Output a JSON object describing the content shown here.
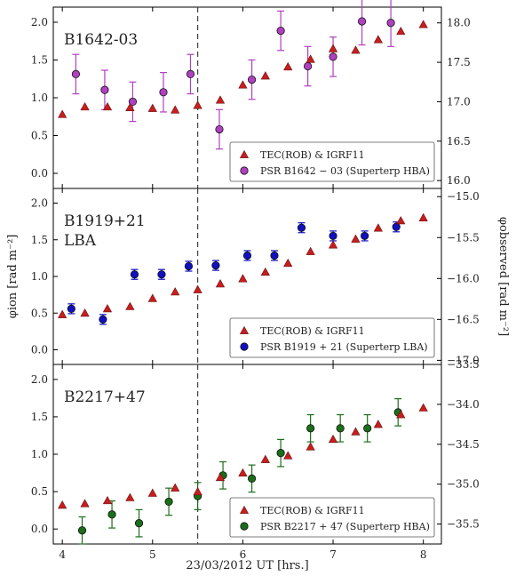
{
  "chart_data": {
    "type": "scatter",
    "xlabel": "23/03/2012 UT [hrs.]",
    "xlim": [
      3.9,
      8.2
    ],
    "x_ticks": [
      "4",
      "5",
      "6",
      "7",
      "8"
    ],
    "vline_x": 5.5,
    "ylabel_left": "φion [rad m⁻²]",
    "ylabel_right": "φobserved [rad m⁻²]",
    "panels": [
      {
        "label": "B1642-03",
        "left_ylim": [
          -0.2,
          2.2
        ],
        "left_ticks": [
          "0.0",
          "0.5",
          "1.0",
          "1.5",
          "2.0"
        ],
        "right_ylim": [
          15.9,
          18.2
        ],
        "right_ticks": [
          "16.0",
          "16.5",
          "17.0",
          "17.5",
          "18.0"
        ],
        "model_series": {
          "name": "TEC(ROB) & IGRF11",
          "x": [
            4.0,
            4.25,
            4.5,
            4.75,
            5.0,
            5.25,
            5.5,
            5.75,
            6.0,
            6.25,
            6.5,
            6.75,
            7.0,
            7.25,
            7.5,
            7.75,
            8.0
          ],
          "y": [
            0.78,
            0.88,
            0.88,
            0.87,
            0.86,
            0.84,
            0.9,
            0.97,
            1.17,
            1.29,
            1.41,
            1.51,
            1.65,
            1.63,
            1.77,
            1.88,
            1.97
          ]
        },
        "obs_series": {
          "name": "PSR B1642 − 03 (Superterp HBA)",
          "color": "#b040c0",
          "x": [
            4.15,
            4.47,
            4.78,
            5.12,
            5.42,
            5.74,
            6.1,
            6.42,
            6.72,
            7.0,
            7.32,
            7.64
          ],
          "y": [
            17.35,
            17.15,
            17.0,
            17.12,
            17.35,
            16.65,
            17.28,
            17.9,
            17.45,
            17.57,
            18.02,
            18.0
          ],
          "err": [
            0.25,
            0.25,
            0.25,
            0.25,
            0.25,
            0.25,
            0.25,
            0.25,
            0.25,
            0.25,
            0.3,
            0.3
          ]
        },
        "legend": [
          "TEC(ROB) & IGRF11",
          "PSR B1642 − 03 (Superterp HBA)"
        ]
      },
      {
        "label": "B1919+21\nLBA",
        "left_ylim": [
          -0.2,
          2.2
        ],
        "left_ticks": [
          "0.0",
          "0.5",
          "1.0",
          "1.5",
          "2.0"
        ],
        "right_ylim": [
          -17.05,
          -14.9
        ],
        "right_ticks": [
          "−17.0",
          "−16.5",
          "−16.0",
          "−15.5",
          "−15.0"
        ],
        "model_series": {
          "name": "TEC(ROB) & IGRF11",
          "x": [
            4.0,
            4.25,
            4.5,
            4.75,
            5.0,
            5.25,
            5.5,
            5.75,
            6.0,
            6.25,
            6.5,
            6.75,
            7.0,
            7.25,
            7.5,
            7.75,
            8.0
          ],
          "y": [
            0.48,
            0.5,
            0.56,
            0.59,
            0.7,
            0.79,
            0.82,
            0.9,
            0.97,
            1.06,
            1.18,
            1.34,
            1.43,
            1.51,
            1.66,
            1.76,
            1.8
          ]
        },
        "obs_series": {
          "name": "PSR B1919 + 21 (Superterp LBA)",
          "color": "#1010c0",
          "x": [
            4.1,
            4.45,
            4.8,
            5.1,
            5.4,
            5.7,
            6.05,
            6.35,
            6.65,
            7.0,
            7.35,
            7.7
          ],
          "y": [
            -16.37,
            -16.5,
            -15.95,
            -15.95,
            -15.85,
            -15.84,
            -15.72,
            -15.72,
            -15.38,
            -15.48,
            -15.48,
            -15.37
          ],
          "err": [
            0.06,
            0.06,
            0.06,
            0.06,
            0.06,
            0.06,
            0.06,
            0.06,
            0.06,
            0.06,
            0.06,
            0.06
          ]
        },
        "legend": [
          "TEC(ROB) & IGRF11",
          "PSR B1919 + 21 (Superterp LBA)"
        ]
      },
      {
        "label": "B2217+47",
        "left_ylim": [
          -0.2,
          2.2
        ],
        "left_ticks": [
          "0.0",
          "0.5",
          "1.0",
          "1.5",
          "2.0"
        ],
        "right_ylim": [
          -35.75,
          -33.5
        ],
        "right_ticks": [
          "−35.5",
          "−35.0",
          "−34.5",
          "−34.0",
          "−33.5"
        ],
        "model_series": {
          "name": "TEC(ROB) & IGRF11",
          "x": [
            4.0,
            4.25,
            4.5,
            4.75,
            5.0,
            5.25,
            5.5,
            5.75,
            6.0,
            6.25,
            6.5,
            6.75,
            7.0,
            7.25,
            7.5,
            7.75,
            8.0
          ],
          "y": [
            0.32,
            0.34,
            0.38,
            0.42,
            0.48,
            0.55,
            0.5,
            0.69,
            0.75,
            0.93,
            0.98,
            1.1,
            1.2,
            1.3,
            1.4,
            1.53,
            1.62
          ]
        },
        "obs_series": {
          "name": "PSR B2217 + 47 (Superterp HBA)",
          "color": "#1a6e1a",
          "x": [
            4.22,
            4.55,
            4.85,
            5.18,
            5.5,
            5.78,
            6.1,
            6.42,
            6.75,
            7.08,
            7.38,
            7.72
          ],
          "y": [
            -35.58,
            -35.38,
            -35.49,
            -35.22,
            -35.15,
            -34.89,
            -34.93,
            -34.61,
            -34.3,
            -34.3,
            -34.3,
            -34.1
          ],
          "err": [
            0.17,
            0.17,
            0.17,
            0.17,
            0.17,
            0.17,
            0.17,
            0.17,
            0.17,
            0.17,
            0.17,
            0.17
          ]
        },
        "legend": [
          "TEC(ROB) & IGRF11",
          "PSR B2217 + 47 (Superterp HBA)"
        ]
      }
    ]
  },
  "colors": {
    "model_marker": "#c81e1e",
    "model_edge": "#6a0d0d",
    "axis": "#000000",
    "vline": "#444444"
  }
}
